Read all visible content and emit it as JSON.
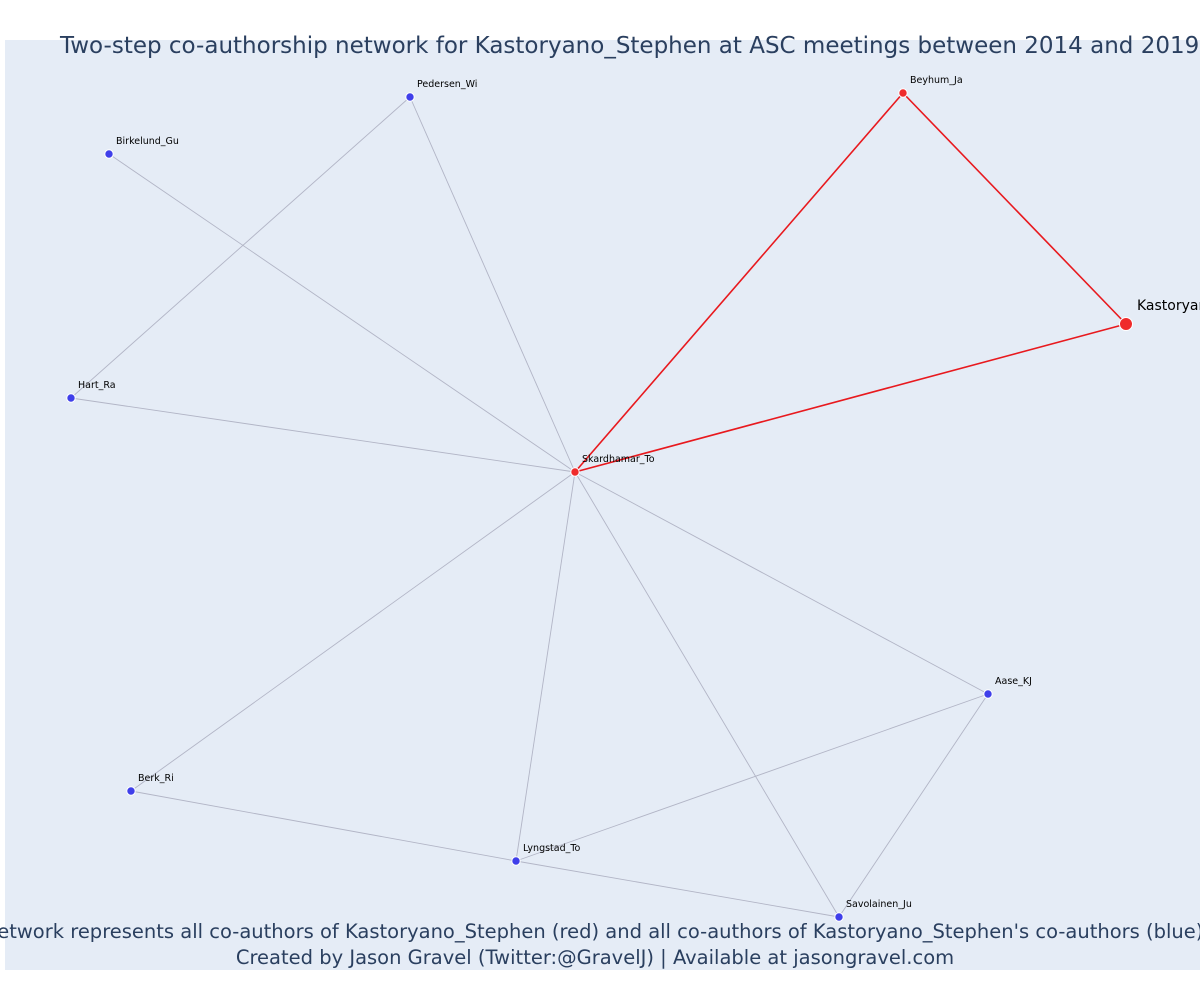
{
  "title": "Two-step co-authorship network for Kastoryano_Stephen at ASC meetings between 2014 and 2019",
  "caption": {
    "line1": "Network represents all co-authors of Kastoryano_Stephen (red) and all co-authors of Kastoryano_Stephen's co-authors (blue)",
    "line2": "Created by Jason Gravel (Twitter:@GravelJ) | Available at jasongravel.com"
  },
  "colors": {
    "background": "#e5ecf6",
    "red": "#ef2b2b",
    "blue": "#3f3fea",
    "red_edge": "#e8191e",
    "grey_edge": "#b2b5c6",
    "text": "#2a3f5f"
  },
  "chart_data": {
    "type": "network",
    "nodes": [
      {
        "id": "Kastoryano_Stephen",
        "group": "ego"
      },
      {
        "id": "Skardhamar_To",
        "group": "red"
      },
      {
        "id": "Beyhum_Ja",
        "group": "red"
      },
      {
        "id": "Pedersen_Wi",
        "group": "blue"
      },
      {
        "id": "Birkelund_Gu",
        "group": "blue"
      },
      {
        "id": "Hart_Ra",
        "group": "blue"
      },
      {
        "id": "Aase_KJ",
        "group": "blue"
      },
      {
        "id": "Berk_Ri",
        "group": "blue"
      },
      {
        "id": "Lyngstad_To",
        "group": "blue"
      },
      {
        "id": "Savolainen_Ju",
        "group": "blue"
      }
    ],
    "edges": [
      [
        "Kastoryano_Stephen",
        "Beyhum_Ja",
        "red"
      ],
      [
        "Kastoryano_Stephen",
        "Skardhamar_To",
        "red"
      ],
      [
        "Beyhum_Ja",
        "Skardhamar_To",
        "red"
      ],
      [
        "Skardhamar_To",
        "Pedersen_Wi",
        "grey"
      ],
      [
        "Skardhamar_To",
        "Birkelund_Gu",
        "grey"
      ],
      [
        "Skardhamar_To",
        "Hart_Ra",
        "grey"
      ],
      [
        "Skardhamar_To",
        "Berk_Ri",
        "grey"
      ],
      [
        "Skardhamar_To",
        "Lyngstad_To",
        "grey"
      ],
      [
        "Skardhamar_To",
        "Savolainen_Ju",
        "grey"
      ],
      [
        "Skardhamar_To",
        "Aase_KJ",
        "grey"
      ],
      [
        "Pedersen_Wi",
        "Hart_Ra",
        "grey"
      ],
      [
        "Berk_Ri",
        "Lyngstad_To",
        "grey"
      ],
      [
        "Lyngstad_To",
        "Savolainen_Ju",
        "grey"
      ],
      [
        "Lyngstad_To",
        "Aase_KJ",
        "grey"
      ],
      [
        "Aase_KJ",
        "Savolainen_Ju",
        "grey"
      ]
    ]
  }
}
